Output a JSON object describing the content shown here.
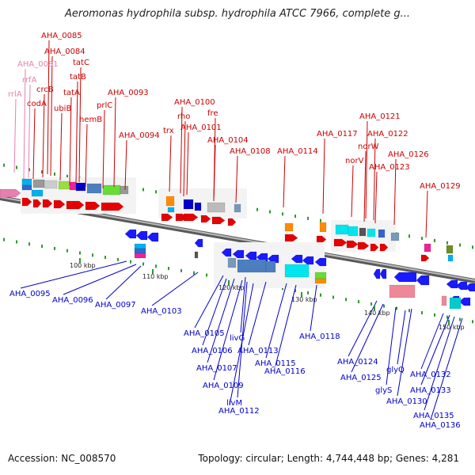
{
  "header": {
    "title": "Aeromonas hydrophila subsp. hydrophila ATCC 7966, complete g..."
  },
  "footer": {
    "accession": "Accession: NC_008570",
    "topology": "Topology: circular; Length: 4,744,448 bp; Genes: 4,281"
  },
  "colors": {
    "forward_label": "#cc0000",
    "reverse_label": "#0000cc",
    "rna_label": "#e77fb0",
    "forward_gene": "#e60000",
    "reverse_gene": "#1a1aff",
    "backbone": "#8a8a8a"
  },
  "scale_ticks": [
    "100 kbp",
    "110 kbp",
    "120 kbp",
    "130 kbp",
    "140 kbp",
    "150 kbp"
  ],
  "top_labels": [
    {
      "text": "AHA_0085",
      "rna": false
    },
    {
      "text": "AHA_0084",
      "rna": false
    },
    {
      "text": "AHA_0081",
      "rna": true
    },
    {
      "text": "tatC",
      "rna": false
    },
    {
      "text": "rrfA",
      "rna": true
    },
    {
      "text": "tatB",
      "rna": false
    },
    {
      "text": "crcB",
      "rna": false
    },
    {
      "text": "rrlA",
      "rna": true
    },
    {
      "text": "tatA",
      "rna": false
    },
    {
      "text": "AHA_0093",
      "rna": false
    },
    {
      "text": "codA",
      "rna": false
    },
    {
      "text": "ubiB",
      "rna": false
    },
    {
      "text": "prlC",
      "rna": false
    },
    {
      "text": "hemB",
      "rna": false
    },
    {
      "text": "AHA_0100",
      "rna": false
    },
    {
      "text": "fre",
      "rna": false
    },
    {
      "text": "rho",
      "rna": false
    },
    {
      "text": "AHA_0121",
      "rna": false
    },
    {
      "text": "trx",
      "rna": false
    },
    {
      "text": "AHA_0101",
      "rna": false
    },
    {
      "text": "AHA_0094",
      "rna": false
    },
    {
      "text": "AHA_0122",
      "rna": false
    },
    {
      "text": "AHA_0117",
      "rna": false
    },
    {
      "text": "AHA_0104",
      "rna": false
    },
    {
      "text": "norW",
      "rna": false
    },
    {
      "text": "AHA_0114",
      "rna": false
    },
    {
      "text": "AHA_0108",
      "rna": false
    },
    {
      "text": "AHA_0126",
      "rna": false
    },
    {
      "text": "norV",
      "rna": false
    },
    {
      "text": "AHA_0123",
      "rna": false
    },
    {
      "text": "AHA_0129",
      "rna": false
    }
  ],
  "bottom_labels": [
    "AHA_0095",
    "AHA_0096",
    "AHA_0097",
    "AHA_0103",
    "AHA_0105",
    "livG",
    "AHA_0106",
    "AHA_0113",
    "AHA_0118",
    "AHA_0107",
    "AHA_0115",
    "AHA_0116",
    "AHA_0124",
    "glyQ",
    "AHA_0132",
    "AHA_0109",
    "AHA_0125",
    "glyS",
    "AHA_0133",
    "livM",
    "AHA_0130",
    "AHA_0112",
    "AHA_0135",
    "AHA_0136"
  ]
}
